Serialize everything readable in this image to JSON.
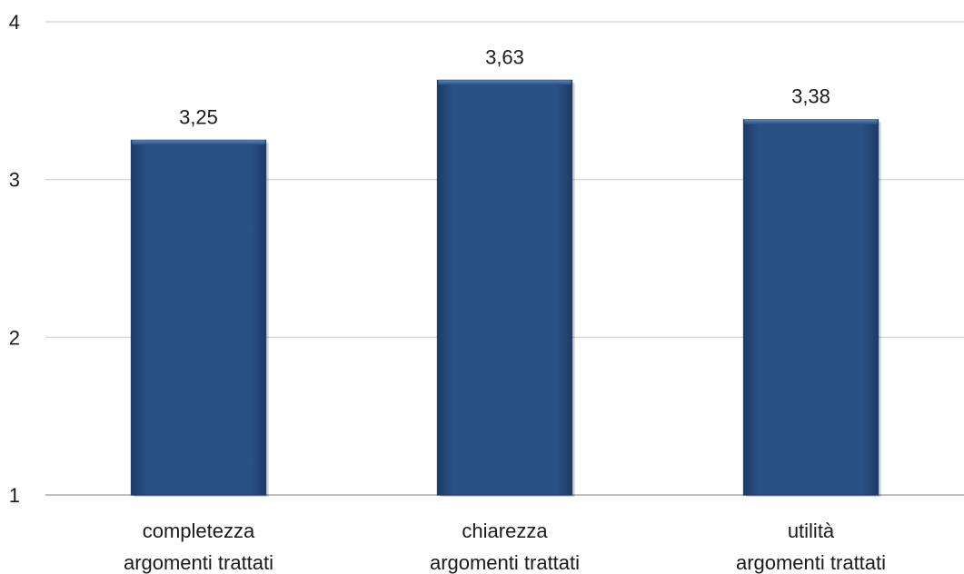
{
  "chart_data": {
    "type": "bar",
    "categories": [
      [
        "completezza",
        "argomenti trattati"
      ],
      [
        "chiarezza",
        "argomenti trattati"
      ],
      [
        "utilità",
        "argomenti trattati"
      ]
    ],
    "values": [
      3.25,
      3.63,
      3.38
    ],
    "data_labels": [
      "3,25",
      "3,63",
      "3,38"
    ],
    "ylim": [
      1,
      4
    ],
    "yticks": [
      1,
      2,
      3,
      4
    ],
    "ytick_labels": [
      "1",
      "2",
      "3",
      "4"
    ],
    "grid": true,
    "legend": false,
    "colors": {
      "bar_fill": "#2a5186",
      "bar_edge": "#1d3c66",
      "bar_highlight": "#4a74a8",
      "grid": "#d9d9d9",
      "text": "#1a1a1a"
    }
  }
}
